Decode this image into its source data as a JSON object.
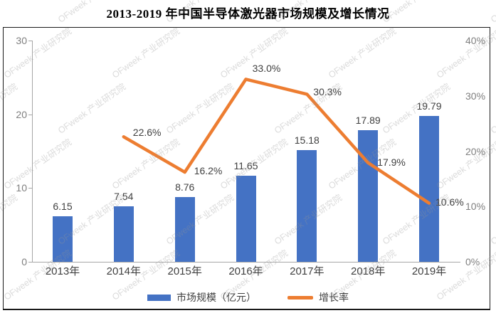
{
  "title": "2013-2019 年中国半导体激光器市场规模及增长情况",
  "watermark": {
    "text": "OFweek 产业研究院"
  },
  "chart_data": {
    "type": "bar+line",
    "title": "2013-2019 年中国半导体激光器市场规模及增长情况",
    "categories": [
      "2013年",
      "2014年",
      "2015年",
      "2016年",
      "2017年",
      "2018年",
      "2019年"
    ],
    "series": [
      {
        "name": "市场规模（亿元）",
        "type": "bar",
        "color": "#4472C4",
        "values": [
          6.15,
          7.54,
          8.76,
          11.65,
          15.18,
          17.89,
          19.79
        ],
        "labels": [
          "6.15",
          "7.54",
          "8.76",
          "11.65",
          "15.18",
          "17.89",
          "19.79"
        ]
      },
      {
        "name": "增长率",
        "type": "line",
        "color": "#ED7D31",
        "values": [
          null,
          22.6,
          16.2,
          33.0,
          30.3,
          17.9,
          10.6
        ],
        "labels": [
          "22.6%",
          "16.2%",
          "33.0%",
          "30.3%",
          "17.9%",
          "10.6%"
        ]
      }
    ],
    "left_axis": {
      "min": 0,
      "max": 30,
      "ticks": [
        "0",
        "10",
        "20",
        "30"
      ]
    },
    "right_axis": {
      "min": 0,
      "max": 40,
      "ticks": [
        "0%",
        "10%",
        "20%",
        "30%",
        "40%"
      ]
    },
    "legend": [
      {
        "label": "市场规模（亿元）",
        "color": "#4472C4",
        "marker": "bar"
      },
      {
        "label": "增长率",
        "color": "#ED7D31",
        "marker": "line"
      }
    ],
    "legend_position": "bottom",
    "grid": false
  }
}
